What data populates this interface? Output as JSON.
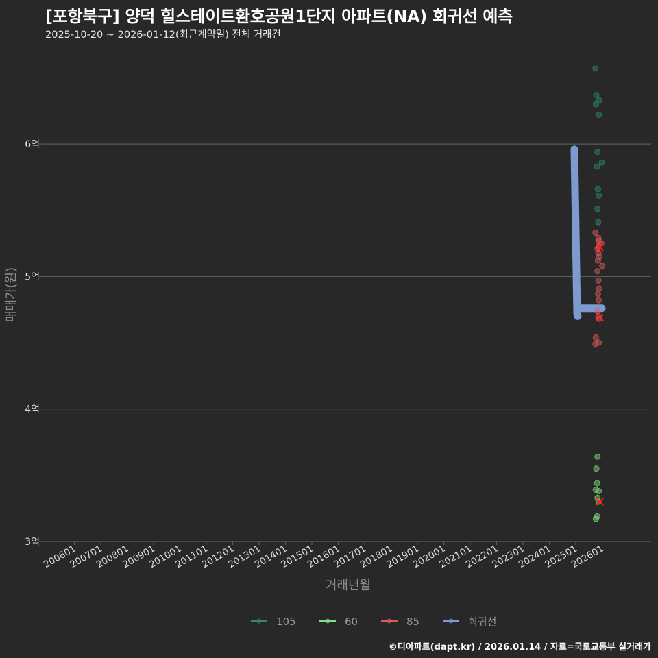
{
  "header": {
    "title": "[포항북구] 양덕 힐스테이트환호공원1단지 아파트(NA) 회귀선 예측",
    "subtitle": "2025-10-20 ~ 2026-01-12(최근계약일) 전체 거래건"
  },
  "footer": {
    "credit": "©디아파트(dapt.kr) / 2026.01.14 / 자료=국토교통부 실거래가"
  },
  "colors": {
    "background": "#282828",
    "grid": "#5a5a5a",
    "s105": "#2a8a72",
    "s60": "#7fe07f",
    "s85": "#e05a5a",
    "regression": "#7e9bd0",
    "cross": "#ff2020"
  },
  "chart_data": {
    "type": "scatter",
    "title": "[포항북구] 양덕 힐스테이트환호공원1단지 아파트(NA) 회귀선 예측",
    "subtitle": "2025-10-20 ~ 2026-01-12(최근계약일) 전체 거래건",
    "xlabel": "거래년월",
    "ylabel": "매매가(원)",
    "x_ticks": [
      "200601",
      "200701",
      "200801",
      "200901",
      "201001",
      "201101",
      "201201",
      "201301",
      "201401",
      "201501",
      "201601",
      "201701",
      "201801",
      "201901",
      "202001",
      "202101",
      "202201",
      "202301",
      "202401",
      "202501",
      "202601"
    ],
    "y_ticks": [
      {
        "value": 6.0,
        "label": "6억"
      },
      {
        "value": 5.0,
        "label": "5억"
      },
      {
        "value": 4.0,
        "label": "4억"
      },
      {
        "value": 3.0,
        "label": "3억"
      }
    ],
    "ylim": [
      3.0,
      6.75
    ],
    "legend": {
      "position": "bottom",
      "items": [
        {
          "label": "105",
          "color": "#2a8a72"
        },
        {
          "label": "60",
          "color": "#7fe07f"
        },
        {
          "label": "85",
          "color": "#e05a5a"
        },
        {
          "label": "회귀선",
          "color": "#7e9bd0"
        }
      ]
    },
    "series": [
      {
        "name": "105",
        "unit": "억원",
        "points": [
          {
            "x": "202511",
            "y": 6.57
          },
          {
            "x": "202511",
            "y": 6.37
          },
          {
            "x": "202512",
            "y": 6.33
          },
          {
            "x": "202511",
            "y": 6.3
          },
          {
            "x": "202512",
            "y": 6.22
          },
          {
            "x": "202512",
            "y": 5.94
          },
          {
            "x": "202601",
            "y": 5.86
          },
          {
            "x": "202511",
            "y": 5.83
          },
          {
            "x": "202512",
            "y": 5.66
          },
          {
            "x": "202512",
            "y": 5.61
          },
          {
            "x": "202512",
            "y": 5.51
          },
          {
            "x": "202512",
            "y": 5.41
          }
        ]
      },
      {
        "name": "85",
        "unit": "억원",
        "points": [
          {
            "x": "202511",
            "y": 5.33
          },
          {
            "x": "202512",
            "y": 5.29
          },
          {
            "x": "202512",
            "y": 5.27
          },
          {
            "x": "202601",
            "y": 5.25
          },
          {
            "x": "202512",
            "y": 5.23
          },
          {
            "x": "202512",
            "y": 5.21
          },
          {
            "x": "202512",
            "y": 5.18
          },
          {
            "x": "202512",
            "y": 5.15
          },
          {
            "x": "202512",
            "y": 5.12
          },
          {
            "x": "202601",
            "y": 5.08
          },
          {
            "x": "202512",
            "y": 5.04
          },
          {
            "x": "202512",
            "y": 4.97
          },
          {
            "x": "202512",
            "y": 4.91
          },
          {
            "x": "202512",
            "y": 4.87
          },
          {
            "x": "202512",
            "y": 4.82
          },
          {
            "x": "202512",
            "y": 4.74
          },
          {
            "x": "202512",
            "y": 4.7
          },
          {
            "x": "202512",
            "y": 4.68
          },
          {
            "x": "202511",
            "y": 4.54
          },
          {
            "x": "202512",
            "y": 4.5
          },
          {
            "x": "202511",
            "y": 4.49
          }
        ]
      },
      {
        "name": "60",
        "unit": "억원",
        "points": [
          {
            "x": "202512",
            "y": 3.64
          },
          {
            "x": "202511",
            "y": 3.55
          },
          {
            "x": "202511",
            "y": 3.44
          },
          {
            "x": "202511",
            "y": 3.39
          },
          {
            "x": "202512",
            "y": 3.38
          },
          {
            "x": "202512",
            "y": 3.33
          },
          {
            "x": "202512",
            "y": 3.3
          },
          {
            "x": "202511",
            "y": 3.19
          },
          {
            "x": "202511",
            "y": 3.17
          }
        ]
      },
      {
        "name": "회귀선",
        "type": "line",
        "unit": "억원",
        "points": [
          {
            "x": "202501",
            "y": 5.96
          },
          {
            "x": "202503",
            "y": 4.7
          },
          {
            "x": "202601",
            "y": 4.76
          }
        ]
      }
    ],
    "predictions_marked_x": [
      {
        "series": "85",
        "x": "202512",
        "y": 5.22
      },
      {
        "series": "85",
        "x": "202512",
        "y": 4.69
      },
      {
        "series": "60",
        "x": "202512",
        "y": 3.3
      }
    ]
  }
}
